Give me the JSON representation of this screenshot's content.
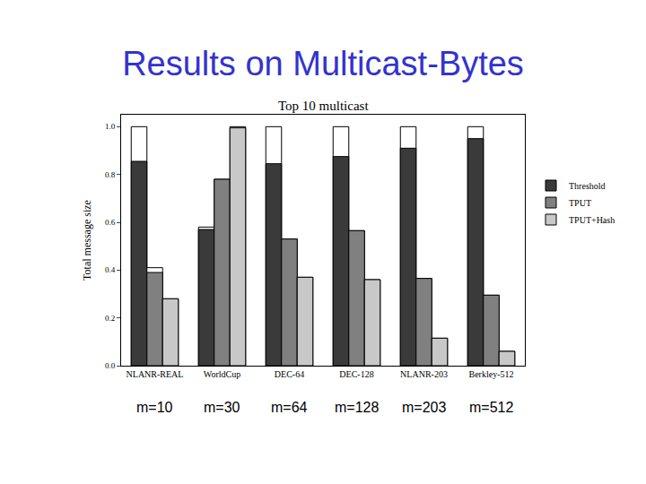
{
  "heading": "Results on Multicast-Bytes",
  "chart_data": {
    "type": "bar",
    "title": "Top 10 multicast",
    "y_label": "Total message size",
    "categories": [
      "NLANR-REAL",
      "WorldCup",
      "DEC-64",
      "DEC-128",
      "NLANR-203",
      "Berkley-512"
    ],
    "annotations": [
      "m=10",
      "m=30",
      "m=64",
      "m=128",
      "m=203",
      "m=512"
    ],
    "series": [
      {
        "name": "Threshold",
        "color": "#3a3a3a",
        "values": [
          0.855,
          0.57,
          0.845,
          0.875,
          0.91,
          0.95
        ],
        "totals": [
          1.0,
          0.58,
          1.0,
          1.0,
          1.0,
          1.0
        ]
      },
      {
        "name": "TPUT",
        "color": "#808080",
        "values": [
          0.39,
          0.78,
          0.53,
          0.565,
          0.365,
          0.295
        ],
        "totals": [
          0.41,
          0.78,
          0.53,
          0.565,
          0.365,
          0.295
        ]
      },
      {
        "name": "TPUT+Hash",
        "color": "#c8c8c8",
        "values": [
          0.28,
          0.995,
          0.37,
          0.36,
          0.115,
          0.06
        ],
        "totals": [
          0.28,
          1.0,
          0.37,
          0.36,
          0.115,
          0.06
        ]
      }
    ],
    "ylim": [
      0,
      1.05
    ],
    "yticks": [
      {
        "value": 0,
        "label": "0.0"
      },
      {
        "value": 0.2,
        "label": "0.2"
      },
      {
        "value": 0.4,
        "label": "0.4"
      },
      {
        "value": 0.6,
        "label": "0.6"
      },
      {
        "value": 0.8,
        "label": "0.8"
      },
      {
        "value": 1,
        "label": "1.0"
      }
    ],
    "grid": false,
    "legend": "right"
  }
}
